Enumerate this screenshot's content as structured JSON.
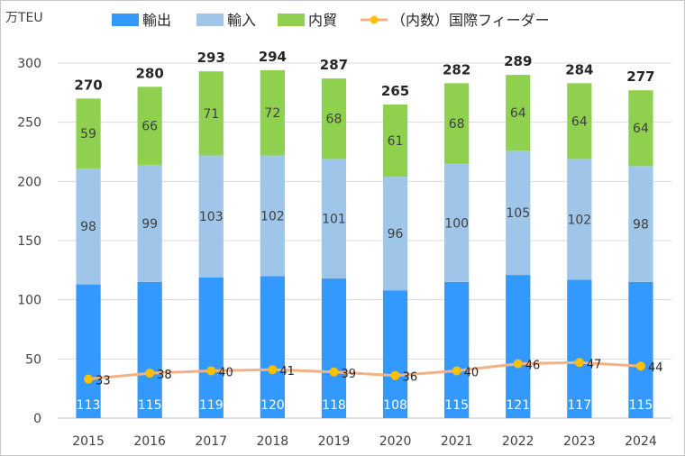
{
  "chart_data": {
    "type": "bar",
    "stacked": true,
    "unit_label": "万TEU",
    "categories": [
      "2015",
      "2016",
      "2017",
      "2018",
      "2019",
      "2020",
      "2021",
      "2022",
      "2023",
      "2024"
    ],
    "series": [
      {
        "name": "輸出",
        "color": "#3399ff",
        "values": [
          113,
          115,
          119,
          120,
          118,
          108,
          115,
          121,
          117,
          115
        ]
      },
      {
        "name": "輸入",
        "color": "#9fc5e8",
        "values": [
          98,
          99,
          103,
          102,
          101,
          96,
          100,
          105,
          102,
          98
        ]
      },
      {
        "name": "内貿",
        "color": "#8fd14f",
        "values": [
          59,
          66,
          71,
          72,
          68,
          61,
          68,
          64,
          64,
          64
        ]
      }
    ],
    "totals": [
      270,
      280,
      293,
      294,
      287,
      265,
      282,
      289,
      284,
      277
    ],
    "line_series": {
      "name": "（内数）国際フィーダー",
      "color": "#f4b183",
      "marker_color": "#ffc000",
      "values": [
        33,
        38,
        40,
        41,
        39,
        36,
        40,
        46,
        47,
        44
      ]
    },
    "y_ticks": [
      0,
      50,
      100,
      150,
      200,
      250,
      300
    ],
    "ylim": [
      0,
      300
    ],
    "grid": true,
    "legend_position": "top"
  }
}
